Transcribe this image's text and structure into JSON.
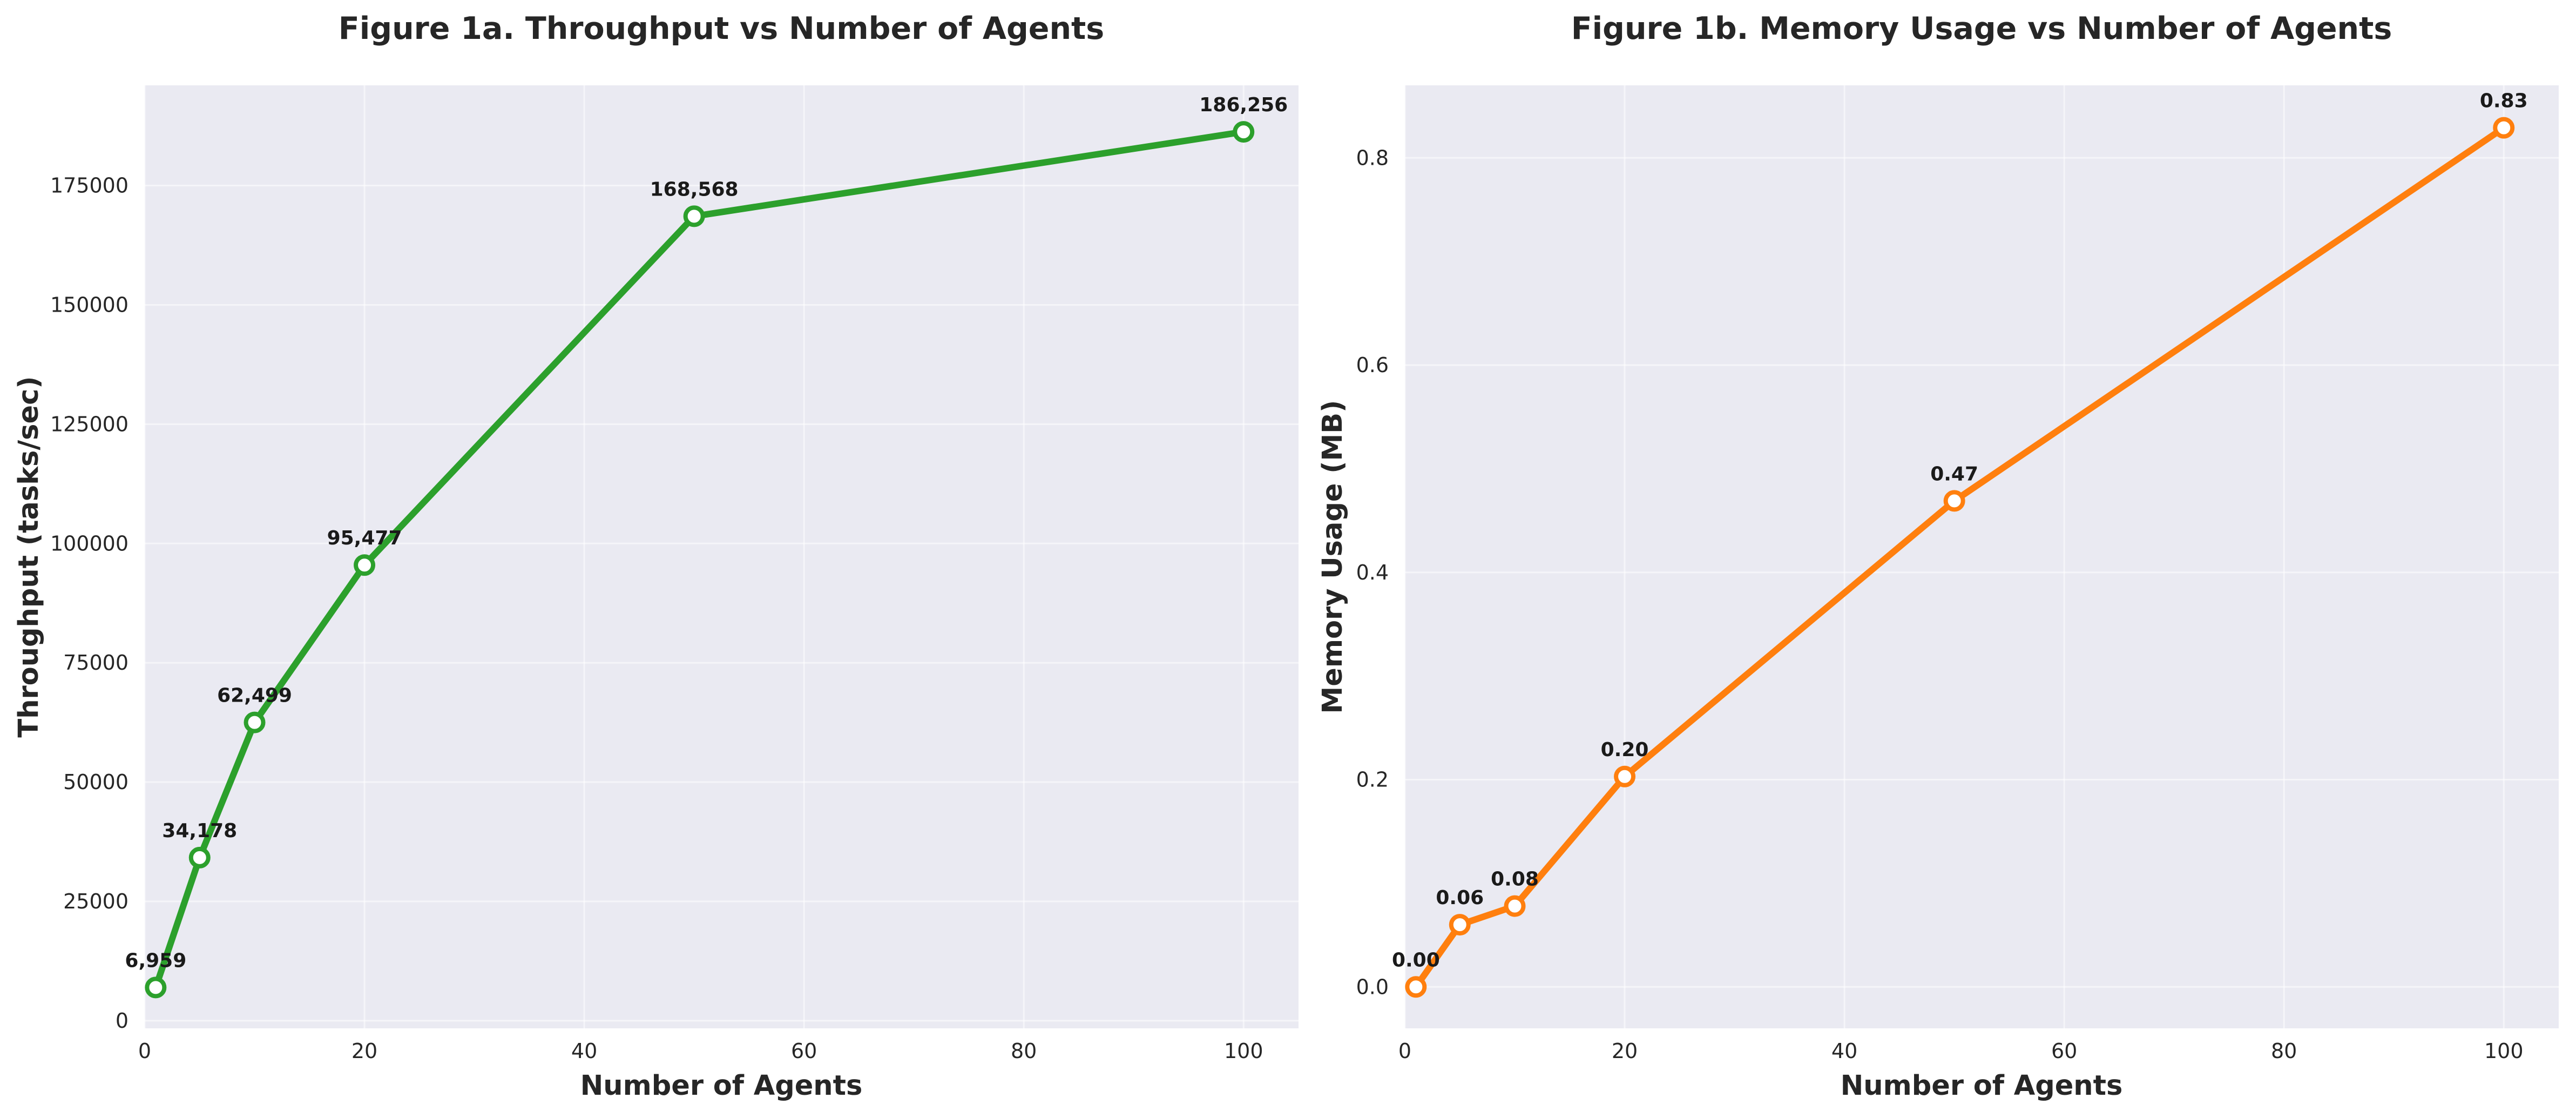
{
  "chart_data": [
    {
      "type": "line",
      "title": "Figure 1a. Throughput vs Number of Agents",
      "xlabel": "Number of Agents",
      "ylabel": "Throughput (tasks/sec)",
      "x": [
        1,
        5,
        10,
        20,
        50,
        100
      ],
      "series": [
        {
          "values": [
            6959,
            34178,
            62499,
            95477,
            168568,
            186256
          ],
          "labels": [
            "6,959",
            "34,178",
            "62,499",
            "95,477",
            "168,568",
            "186,256"
          ],
          "color": "#2ca02c"
        }
      ],
      "xlim": [
        0,
        105
      ],
      "ylim": [
        -1600,
        196000
      ],
      "xticks": [
        0,
        20,
        40,
        60,
        80,
        100
      ],
      "xtick_labels": [
        "0",
        "20",
        "40",
        "60",
        "80",
        "100"
      ],
      "yticks": [
        0,
        25000,
        50000,
        75000,
        100000,
        125000,
        150000,
        175000
      ],
      "ytick_labels": [
        "0",
        "25000",
        "50000",
        "75000",
        "100000",
        "125000",
        "150000",
        "175000"
      ],
      "grid": true,
      "marker": "open-circle"
    },
    {
      "type": "line",
      "title": "Figure 1b. Memory Usage vs Number of Agents",
      "xlabel": "Number of Agents",
      "ylabel": "Memory Usage (MB)",
      "x": [
        1,
        5,
        10,
        20,
        50,
        100
      ],
      "series": [
        {
          "values": [
            0.0,
            0.06,
            0.078,
            0.203,
            0.469,
            0.829
          ],
          "labels": [
            "0.00",
            "0.06",
            "0.08",
            "0.20",
            "0.47",
            "0.83"
          ],
          "color": "#ff7f0e"
        }
      ],
      "xlim": [
        0,
        105
      ],
      "ylim": [
        -0.04,
        0.87
      ],
      "xticks": [
        0,
        20,
        40,
        60,
        80,
        100
      ],
      "xtick_labels": [
        "0",
        "20",
        "40",
        "60",
        "80",
        "100"
      ],
      "yticks": [
        0.0,
        0.2,
        0.4,
        0.6,
        0.8
      ],
      "ytick_labels": [
        "0.0",
        "0.2",
        "0.4",
        "0.6",
        "0.8"
      ],
      "grid": true,
      "marker": "open-circle"
    }
  ]
}
